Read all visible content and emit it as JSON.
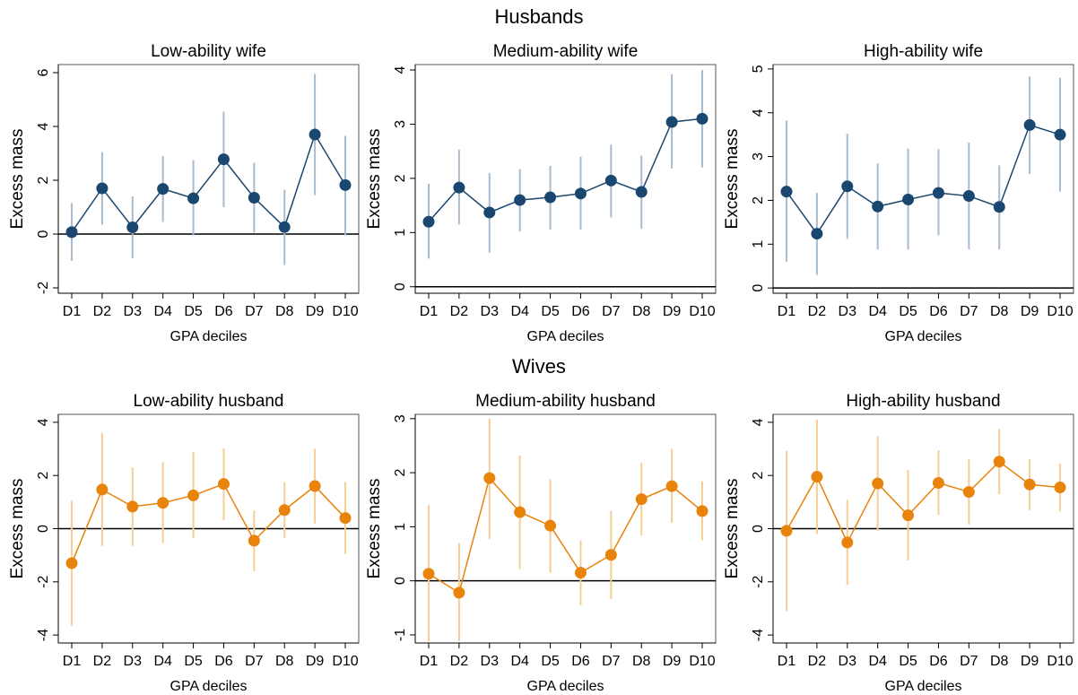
{
  "group_titles": [
    "Husbands",
    "Wives"
  ],
  "chart_data": [
    {
      "type": "line",
      "title": "Low-ability wife",
      "xlabel": "GPA deciles",
      "ylabel": "Excess mass",
      "color": "#1a476f",
      "ci_color": "#a9bccf",
      "refline": 0,
      "categories": [
        "D1",
        "D2",
        "D3",
        "D4",
        "D5",
        "D6",
        "D7",
        "D8",
        "D9",
        "D10"
      ],
      "values": [
        0.07,
        1.7,
        0.25,
        1.68,
        1.33,
        2.78,
        1.35,
        0.26,
        3.7,
        1.82
      ],
      "ci_low": [
        -1.0,
        0.35,
        -0.9,
        0.45,
        -0.05,
        1.0,
        0.05,
        -1.15,
        1.45,
        -0.05
      ],
      "ci_high": [
        1.15,
        3.05,
        1.4,
        2.9,
        2.75,
        4.55,
        2.65,
        1.65,
        5.95,
        3.65
      ],
      "ylim": [
        -2.2,
        6.3
      ],
      "yticks": [
        -2,
        0,
        2,
        4,
        6
      ]
    },
    {
      "type": "line",
      "title": "Medium-ability wife",
      "xlabel": "GPA deciles",
      "ylabel": "Excess mass",
      "color": "#1a476f",
      "ci_color": "#a9bccf",
      "refline": 0,
      "categories": [
        "D1",
        "D2",
        "D3",
        "D4",
        "D5",
        "D6",
        "D7",
        "D8",
        "D9",
        "D10"
      ],
      "values": [
        1.2,
        1.83,
        1.37,
        1.6,
        1.65,
        1.72,
        1.96,
        1.75,
        3.04,
        3.1
      ],
      "ci_low": [
        0.52,
        1.15,
        0.63,
        1.02,
        1.05,
        1.05,
        1.28,
        1.07,
        2.18,
        2.2
      ],
      "ci_high": [
        1.9,
        2.53,
        2.1,
        2.17,
        2.23,
        2.4,
        2.62,
        2.42,
        3.92,
        4.0
      ],
      "ylim": [
        -0.12,
        4.1
      ],
      "yticks": [
        0,
        1,
        2,
        3,
        4
      ]
    },
    {
      "type": "line",
      "title": "High-ability wife",
      "xlabel": "GPA deciles",
      "ylabel": "Excess mass",
      "color": "#1a476f",
      "ci_color": "#a9bccf",
      "refline": 0,
      "categories": [
        "D1",
        "D2",
        "D3",
        "D4",
        "D5",
        "D6",
        "D7",
        "D8",
        "D9",
        "D10"
      ],
      "values": [
        2.2,
        1.24,
        2.32,
        1.86,
        2.02,
        2.17,
        2.1,
        1.85,
        3.72,
        3.5
      ],
      "ci_low": [
        0.6,
        0.3,
        1.12,
        0.88,
        0.88,
        1.2,
        0.88,
        0.88,
        2.6,
        2.2
      ],
      "ci_high": [
        3.82,
        2.17,
        3.52,
        2.84,
        3.18,
        3.17,
        3.32,
        2.8,
        4.83,
        4.8
      ],
      "ylim": [
        -0.12,
        5.1
      ],
      "yticks": [
        0,
        1,
        2,
        3,
        4,
        5
      ]
    },
    {
      "type": "line",
      "title": "Low-ability husband",
      "xlabel": "GPA deciles",
      "ylabel": "Excess mass",
      "color": "#e8830c",
      "ci_color": "#f6cd95",
      "refline": 0,
      "categories": [
        "D1",
        "D2",
        "D3",
        "D4",
        "D5",
        "D6",
        "D7",
        "D8",
        "D9",
        "D10"
      ],
      "values": [
        -1.3,
        1.47,
        0.83,
        0.97,
        1.25,
        1.68,
        -0.45,
        0.7,
        1.6,
        0.4
      ],
      "ci_low": [
        -3.65,
        -0.65,
        -0.65,
        -0.55,
        -0.35,
        0.32,
        -1.6,
        -0.35,
        0.2,
        -0.95
      ],
      "ci_high": [
        1.05,
        3.6,
        2.3,
        2.5,
        2.88,
        3.02,
        0.68,
        1.75,
        3.0,
        1.75
      ],
      "ylim": [
        -4.3,
        4.3
      ],
      "yticks": [
        -4,
        -2,
        0,
        2,
        4
      ]
    },
    {
      "type": "line",
      "title": "Medium-ability husband",
      "xlabel": "GPA deciles",
      "ylabel": "Excess mass",
      "color": "#e8830c",
      "ci_color": "#f6cd95",
      "refline": 0,
      "categories": [
        "D1",
        "D2",
        "D3",
        "D4",
        "D5",
        "D6",
        "D7",
        "D8",
        "D9",
        "D10"
      ],
      "values": [
        0.13,
        -0.22,
        1.9,
        1.27,
        1.02,
        0.15,
        0.48,
        1.51,
        1.75,
        1.29
      ],
      "ci_low": [
        -1.12,
        -1.12,
        0.77,
        0.22,
        0.15,
        -0.45,
        -0.33,
        0.84,
        1.07,
        0.75
      ],
      "ci_high": [
        1.4,
        0.7,
        3.0,
        2.32,
        1.88,
        0.75,
        1.29,
        2.18,
        2.44,
        1.84
      ],
      "ylim": [
        -1.15,
        3.08
      ],
      "yticks": [
        -1,
        0,
        1,
        2,
        3
      ]
    },
    {
      "type": "line",
      "title": "High-ability husband",
      "xlabel": "GPA deciles",
      "ylabel": "Excess mass",
      "color": "#e8830c",
      "ci_color": "#f6cd95",
      "refline": 0,
      "categories": [
        "D1",
        "D2",
        "D3",
        "D4",
        "D5",
        "D6",
        "D7",
        "D8",
        "D9",
        "D10"
      ],
      "values": [
        -0.08,
        1.95,
        -0.52,
        1.7,
        0.5,
        1.72,
        1.38,
        2.52,
        1.66,
        1.55
      ],
      "ci_low": [
        -3.1,
        -0.2,
        -2.12,
        -0.08,
        -1.2,
        0.52,
        0.15,
        1.3,
        0.7,
        0.65
      ],
      "ci_high": [
        2.92,
        4.1,
        1.08,
        3.48,
        2.2,
        2.95,
        2.6,
        3.75,
        2.62,
        2.45
      ],
      "ylim": [
        -4.3,
        4.3
      ],
      "yticks": [
        -4,
        -2,
        0,
        2,
        4
      ]
    }
  ]
}
